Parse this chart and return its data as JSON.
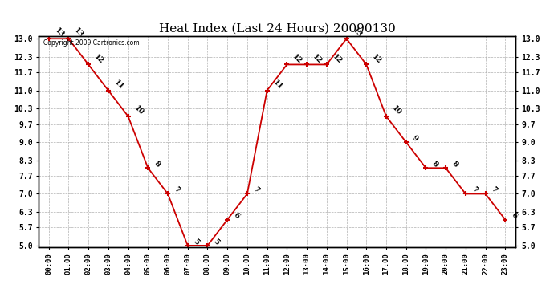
{
  "title": "Heat Index (Last 24 Hours) 20090130",
  "hours": [
    "00:00",
    "01:00",
    "02:00",
    "03:00",
    "04:00",
    "05:00",
    "06:00",
    "07:00",
    "08:00",
    "09:00",
    "10:00",
    "11:00",
    "12:00",
    "13:00",
    "14:00",
    "15:00",
    "16:00",
    "17:00",
    "18:00",
    "19:00",
    "20:00",
    "21:00",
    "22:00",
    "23:00"
  ],
  "values": [
    13,
    13,
    12,
    11,
    10,
    8,
    7,
    5,
    5,
    6,
    7,
    11,
    12,
    12,
    12,
    13,
    12,
    10,
    9,
    8,
    8,
    7,
    7,
    6
  ],
  "line_color": "#cc0000",
  "marker_color": "#cc0000",
  "bg_color": "#ffffff",
  "grid_color": "#b0b0b0",
  "ylim_min": 5.0,
  "ylim_max": 13.0,
  "yticks": [
    5.0,
    5.7,
    6.3,
    7.0,
    7.7,
    8.3,
    9.0,
    9.7,
    10.3,
    11.0,
    11.7,
    12.3,
    13.0
  ],
  "copyright_text": "Copyright 2009 Cartronics.com",
  "title_fontsize": 11,
  "label_fontsize": 6.5,
  "tick_fontsize": 6.5,
  "ytick_fontsize": 7.0
}
